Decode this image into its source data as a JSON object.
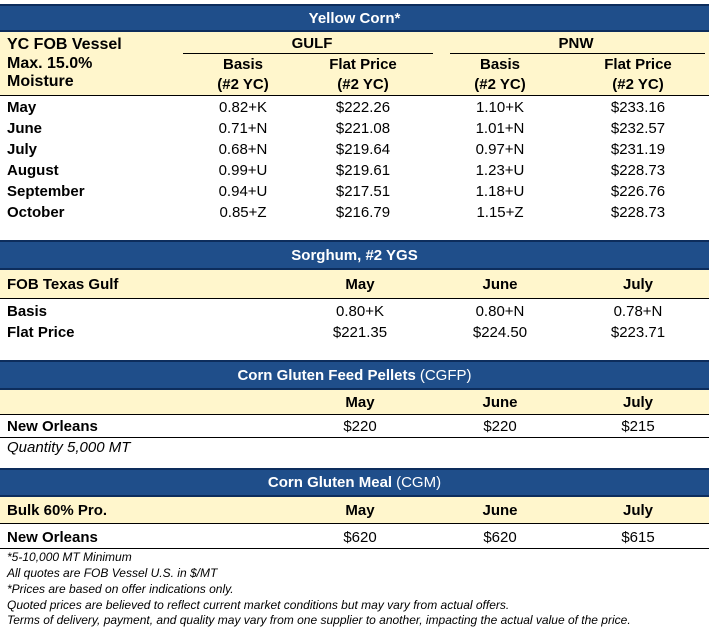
{
  "corn": {
    "title": "Yellow Corn*",
    "row_label_1": "YC FOB Vessel",
    "row_label_2": "Max. 15.0%",
    "row_label_3": "Moisture",
    "gulf": "GULF",
    "pnw": "PNW",
    "basis": "Basis",
    "flat": "Flat Price",
    "yc": "(#2 YC)",
    "rows": [
      {
        "m": "May",
        "gb": "0.82+K",
        "gf": "$222.26",
        "pb": "1.10+K",
        "pf": "$233.16"
      },
      {
        "m": "June",
        "gb": "0.71+N",
        "gf": "$221.08",
        "pb": "1.01+N",
        "pf": "$232.57"
      },
      {
        "m": "July",
        "gb": "0.68+N",
        "gf": "$219.64",
        "pb": "0.97+N",
        "pf": "$231.19"
      },
      {
        "m": "August",
        "gb": "0.99+U",
        "gf": "$219.61",
        "pb": "1.23+U",
        "pf": "$228.73"
      },
      {
        "m": "September",
        "gb": "0.94+U",
        "gf": "$217.51",
        "pb": "1.18+U",
        "pf": "$226.76"
      },
      {
        "m": "October",
        "gb": "0.85+Z",
        "gf": "$216.79",
        "pb": "1.15+Z",
        "pf": "$228.73"
      }
    ]
  },
  "sorghum": {
    "title": "Sorghum,  #2 YGS",
    "label": "FOB Texas Gulf",
    "months": [
      "May",
      "June",
      "July"
    ],
    "basis_label": "Basis",
    "basis": [
      "0.80+K",
      "0.80+N",
      "0.78+N"
    ],
    "flat_label": "Flat Price",
    "flat": [
      "$221.35",
      "$224.50",
      "$223.71"
    ]
  },
  "cgfp": {
    "title": "Corn Gluten Feed Pellets",
    "abbr": "(CGFP)",
    "months": [
      "May",
      "June",
      "July"
    ],
    "row_label": "New Orleans",
    "values": [
      "$220",
      "$220",
      "$215"
    ],
    "quantity": "Quantity 5,000 MT"
  },
  "cgm": {
    "title": "Corn Gluten Meal",
    "abbr": "(CGM)",
    "label": "Bulk 60% Pro.",
    "months": [
      "May",
      "June",
      "July"
    ],
    "row_label": "New Orleans",
    "values": [
      "$620",
      "$620",
      "$615"
    ]
  },
  "notes": [
    "*5-10,000 MT Minimum",
    "All quotes are FOB Vessel U.S. in $/MT",
    "*Prices are based on offer indications only.",
    "Quoted prices are believed to reflect current market conditions but may vary from actual offers.",
    "Terms of delivery, payment, and quality may vary from one supplier to another, impacting the actual value of the price."
  ],
  "colors": {
    "header": "#1f4e8a",
    "subheader": "#fff6cc"
  }
}
